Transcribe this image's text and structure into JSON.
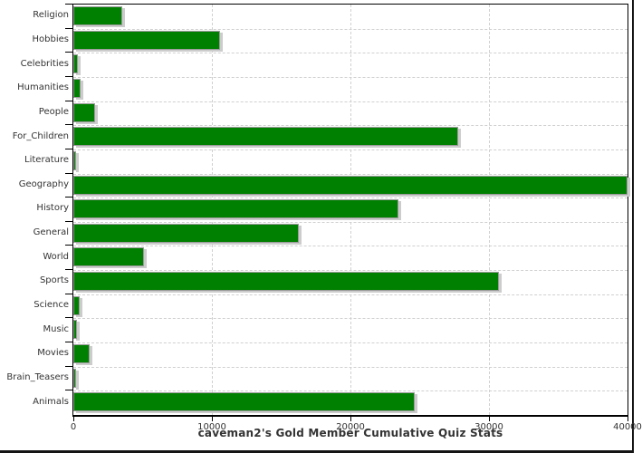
{
  "chart_data": {
    "type": "bar",
    "orientation": "horizontal",
    "title": "caveman2's Gold Member Cumulative Quiz Stats",
    "categories": [
      "Religion",
      "Hobbies",
      "Celebrities",
      "Humanities",
      "People",
      "For_Children",
      "Literature",
      "Geography",
      "History",
      "General",
      "World",
      "Sports",
      "Science",
      "Music",
      "Movies",
      "Brain_Teasers",
      "Animals"
    ],
    "values": [
      3550,
      10600,
      350,
      520,
      1580,
      27750,
      180,
      40000,
      23450,
      16250,
      5100,
      30700,
      480,
      260,
      1150,
      200,
      24650
    ],
    "xlabel": "",
    "ylabel": "",
    "xlim": [
      0,
      40000
    ],
    "x_ticks": [
      0,
      10000,
      20000,
      30000,
      40000
    ],
    "x_tick_labels": [
      "0",
      "10000",
      "20000",
      "30000",
      "40000"
    ],
    "grid": "dashed",
    "legend": "none",
    "colors": {
      "bar_fill": "#008000",
      "bar_outline": "#9a9a9a",
      "bar_shadow": "#cccccc",
      "grid_line": "#d0d0d0",
      "axis_line": "#000000",
      "text": "#333333",
      "background": "#ffffff",
      "window_edge": "#141414"
    }
  }
}
